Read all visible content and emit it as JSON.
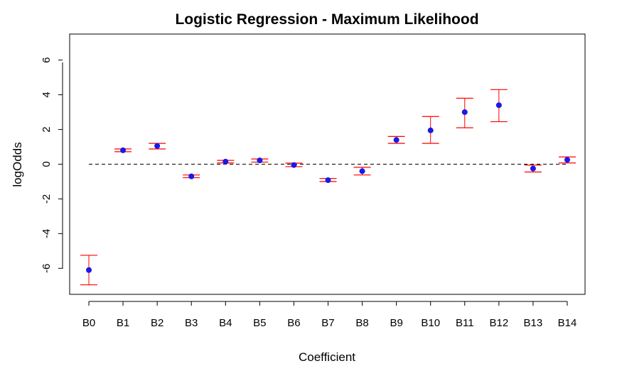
{
  "chart_data": {
    "type": "scatter",
    "title": "Logistic Regression - Maximum Likelihood",
    "xlabel": "Coefficient",
    "ylabel": "logOdds",
    "categories": [
      "B0",
      "B1",
      "B2",
      "B3",
      "B4",
      "B5",
      "B6",
      "B7",
      "B8",
      "B9",
      "B10",
      "B11",
      "B12",
      "B13",
      "B14"
    ],
    "estimates": [
      -6.1,
      0.8,
      1.05,
      -0.7,
      0.15,
      0.22,
      -0.05,
      -0.92,
      -0.4,
      1.4,
      1.95,
      3.0,
      3.4,
      -0.25,
      0.25
    ],
    "lower": [
      -6.95,
      0.72,
      0.88,
      -0.78,
      0.07,
      0.12,
      -0.14,
      -1.0,
      -0.62,
      1.2,
      1.2,
      2.1,
      2.45,
      -0.45,
      0.07
    ],
    "upper": [
      -5.25,
      0.88,
      1.2,
      -0.62,
      0.22,
      0.3,
      0.06,
      -0.82,
      -0.18,
      1.6,
      2.75,
      3.8,
      4.3,
      -0.05,
      0.42
    ],
    "reference_line": 0,
    "ylim": [
      -7.5,
      7.5
    ],
    "yticks": [
      -6,
      -4,
      -2,
      0,
      2,
      4,
      6
    ],
    "point_color": "#1a1ae6",
    "errorbar_color": "#ff0000",
    "reference_line_style": "dashed black"
  }
}
